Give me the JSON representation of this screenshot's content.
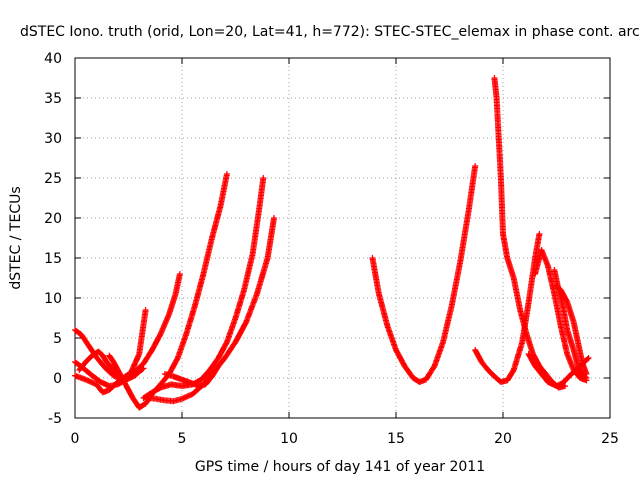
{
  "chart_data": {
    "type": "scatter",
    "title": "dSTEC Iono. truth (orid, Lon=20, Lat=41, h=772): STEC-STEC_elemax in phase cont. arc",
    "xlabel": "GPS time / hours of day 141 of year 2011",
    "ylabel": "dSTEC  / TECUs",
    "xlim": [
      0,
      25
    ],
    "ylim": [
      -5,
      40
    ],
    "xticks": [
      0,
      5,
      10,
      15,
      20,
      25
    ],
    "yticks": [
      -5,
      0,
      5,
      10,
      15,
      20,
      25,
      30,
      35,
      40
    ],
    "grid": true,
    "marker": "+",
    "color": "#ff0000",
    "series": [
      {
        "x": [
          0.0,
          0.4,
          0.8,
          1.2,
          1.6,
          2.0,
          2.4,
          2.8,
          3.0,
          3.2
        ],
        "y": [
          2.0,
          1.2,
          0.3,
          -0.5,
          -1.0,
          -0.8,
          -0.2,
          0.3,
          0.8,
          1.2
        ]
      },
      {
        "x": [
          0.0,
          0.3,
          0.6,
          1.0,
          1.4,
          1.8,
          2.2,
          2.6,
          3.0,
          3.3
        ],
        "y": [
          6.0,
          5.4,
          4.2,
          2.6,
          1.3,
          0.3,
          -0.2,
          0.6,
          3.0,
          8.5
        ]
      },
      {
        "x": [
          0.0,
          0.5,
          1.0,
          1.3,
          1.6,
          2.0,
          2.4,
          2.8,
          3.2,
          3.6,
          4.0,
          4.4,
          4.7,
          4.9
        ],
        "y": [
          0.3,
          -0.2,
          -0.8,
          -1.8,
          -1.5,
          -0.5,
          0.3,
          0.8,
          1.8,
          3.5,
          5.5,
          8.0,
          10.5,
          13.0
        ]
      },
      {
        "x": [
          0.2,
          0.5,
          0.8,
          1.1,
          1.3,
          1.5,
          1.8,
          2.0
        ],
        "y": [
          1.0,
          2.0,
          2.8,
          3.3,
          2.8,
          1.9,
          1.0,
          0.2
        ]
      },
      {
        "x": [
          1.6,
          1.8,
          2.1,
          2.4,
          2.7,
          3.0,
          3.3,
          3.6,
          4.0,
          4.4,
          4.8,
          5.2,
          5.6,
          6.0,
          6.4,
          6.8,
          7.1
        ],
        "y": [
          2.8,
          2.0,
          0.5,
          -1.0,
          -2.5,
          -3.7,
          -3.2,
          -2.0,
          -0.8,
          0.5,
          2.5,
          5.5,
          9.0,
          13.0,
          17.5,
          21.5,
          25.5
        ]
      },
      {
        "x": [
          3.2,
          3.6,
          4.0,
          4.5,
          5.0,
          5.5,
          5.9,
          6.3,
          6.7,
          7.1,
          7.5,
          7.9,
          8.3,
          8.6,
          8.8
        ],
        "y": [
          -2.5,
          -1.8,
          -1.2,
          -0.8,
          -1.0,
          -0.8,
          -0.2,
          1.0,
          2.5,
          4.5,
          7.5,
          11.0,
          15.5,
          21.0,
          25.0
        ]
      },
      {
        "x": [
          3.4,
          3.8,
          4.2,
          4.6,
          5.0,
          5.5,
          6.0,
          6.5,
          7.0,
          7.5,
          8.0,
          8.5,
          9.0,
          9.3
        ],
        "y": [
          -2.5,
          -2.6,
          -2.8,
          -2.9,
          -2.6,
          -2.0,
          -0.8,
          0.8,
          2.5,
          4.5,
          7.0,
          10.5,
          15.0,
          20.0
        ]
      },
      {
        "x": [
          4.2,
          4.6,
          5.0,
          5.4,
          5.8,
          6.1,
          6.4,
          6.7
        ],
        "y": [
          0.5,
          0.2,
          -0.2,
          -0.6,
          -1.0,
          -0.8,
          0.2,
          1.5
        ]
      },
      {
        "x": [
          13.9,
          14.2,
          14.6,
          15.0,
          15.4,
          15.8,
          16.1,
          16.4,
          16.8,
          17.2,
          17.6,
          18.0,
          18.4,
          18.7
        ],
        "y": [
          15.0,
          10.5,
          6.5,
          3.5,
          1.5,
          0.0,
          -0.5,
          -0.2,
          1.5,
          4.5,
          9.0,
          14.5,
          21.0,
          26.5
        ]
      },
      {
        "x": [
          18.7,
          19.0,
          19.3,
          19.6,
          19.9,
          20.2,
          20.5,
          20.9,
          21.2,
          21.5,
          21.7
        ],
        "y": [
          3.5,
          2.0,
          1.0,
          0.2,
          -0.5,
          -0.3,
          1.0,
          4.5,
          9.5,
          15.0,
          18.0
        ]
      },
      {
        "x": [
          19.6,
          19.7,
          19.8,
          19.9,
          20.0,
          20.2,
          20.5,
          20.8,
          21.1,
          21.4,
          21.7,
          22.0,
          22.3,
          22.6,
          22.9
        ],
        "y": [
          37.5,
          35.0,
          30.0,
          25.0,
          18.0,
          15.0,
          12.5,
          8.5,
          5.5,
          3.0,
          1.5,
          0.5,
          -0.5,
          -1.2,
          -1.0
        ]
      },
      {
        "x": [
          21.5,
          21.8,
          22.1,
          22.4,
          22.7,
          23.0,
          23.3,
          23.6,
          23.9
        ],
        "y": [
          13.0,
          16.0,
          14.0,
          10.5,
          6.5,
          3.0,
          1.0,
          0.0,
          -0.3
        ]
      },
      {
        "x": [
          21.2,
          21.5,
          21.8,
          22.1,
          22.5,
          22.8,
          23.2,
          23.6,
          24.0
        ],
        "y": [
          3.0,
          1.5,
          0.5,
          -0.5,
          -1.0,
          -0.6,
          0.5,
          1.5,
          2.5
        ]
      },
      {
        "x": [
          22.4,
          22.6,
          22.8,
          23.0,
          23.3,
          23.5,
          23.7,
          23.9
        ],
        "y": [
          13.5,
          11.0,
          9.0,
          6.0,
          3.5,
          1.5,
          0.5,
          0.0
        ]
      },
      {
        "x": [
          22.5,
          22.7,
          23.0,
          23.3,
          23.5,
          23.7,
          23.9
        ],
        "y": [
          11.5,
          11.0,
          9.5,
          7.0,
          4.5,
          2.0,
          0.5
        ]
      }
    ]
  }
}
